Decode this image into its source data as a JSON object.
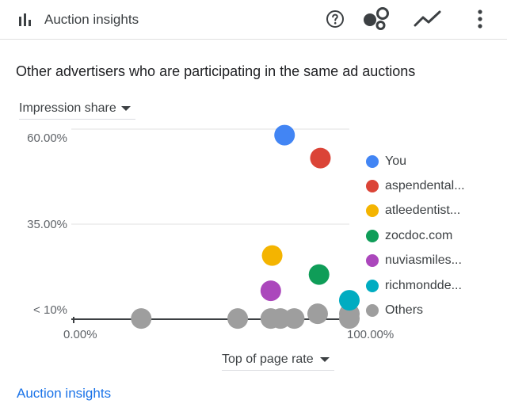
{
  "header": {
    "title": "Auction insights",
    "icons": [
      "bar-chart-icon",
      "help-icon",
      "scatter-chart-icon",
      "line-chart-icon",
      "more-vert-icon"
    ]
  },
  "main": {
    "subtitle": "Other advertisers who are participating in the same ad auctions",
    "metric_dropdown": "Impression share",
    "x_dropdown": "Top of page rate"
  },
  "footer": {
    "link": "Auction insights"
  },
  "chart_data": {
    "type": "scatter",
    "title": "",
    "xlabel": "Top of page rate",
    "ylabel": "Impression share",
    "x_tick_labels": [
      "0.00%",
      "100.00%"
    ],
    "y_tick_labels": [
      "60.00%",
      "35.00%",
      "< 10%"
    ],
    "xlim": [
      0,
      100
    ],
    "ylim": [
      5,
      60
    ],
    "grid": true,
    "legend_position": "right",
    "series": [
      {
        "name": "You",
        "color": "#4285f4",
        "points": [
          [
            76.5,
            59.4
          ]
        ]
      },
      {
        "name": "aspendental...",
        "color": "#db4437",
        "points": [
          [
            89.5,
            52.6
          ]
        ]
      },
      {
        "name": "atleedentist...",
        "color": "#f4b400",
        "points": [
          [
            72.0,
            23.8
          ]
        ]
      },
      {
        "name": "zocdoc.com",
        "color": "#0f9d58",
        "points": [
          [
            89.0,
            18.2
          ]
        ]
      },
      {
        "name": "nuviasmiles...",
        "color": "#ab47bc",
        "points": [
          [
            71.5,
            13.4
          ]
        ]
      },
      {
        "name": "richmondde...",
        "color": "#00acc1",
        "points": [
          [
            100.0,
            10.6
          ]
        ]
      },
      {
        "name": "Others",
        "color": "#9e9e9e",
        "points": [
          [
            24.5,
            5.2
          ],
          [
            59.5,
            5.2
          ],
          [
            71.5,
            5.2
          ],
          [
            75.0,
            5.2
          ],
          [
            80.0,
            5.2
          ],
          [
            88.5,
            6.6
          ],
          [
            100.0,
            6.6
          ],
          [
            100.0,
            5.2
          ]
        ]
      }
    ]
  }
}
